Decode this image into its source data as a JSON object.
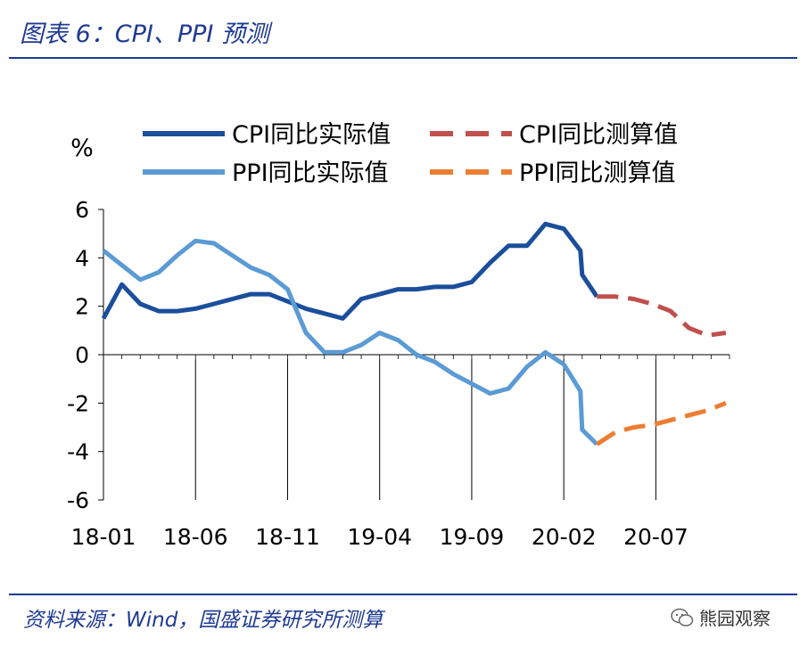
{
  "header": {
    "title": "图表 6：CPI、PPI 预测"
  },
  "footer": {
    "source": "资料来源：Wind，国盛证券研究所测算",
    "brand": "熊园观察",
    "brand_icon": "wechat-icon"
  },
  "chart_data": {
    "type": "line",
    "unit_label": "%",
    "ylim": [
      -6,
      6
    ],
    "yticks": [
      6,
      4,
      2,
      0,
      -2,
      -4,
      -6
    ],
    "x_tick_labels": [
      "18-01",
      "18-06",
      "18-11",
      "19-04",
      "19-09",
      "20-02",
      "20-07"
    ],
    "x_range": [
      0,
      34
    ],
    "x_tick_positions": [
      0,
      5,
      10,
      15,
      20,
      25,
      30
    ],
    "legend_placement": "top",
    "series": [
      {
        "name": "CPI同比实际值",
        "color": "#1b4e9b",
        "style": "solid",
        "x": [
          0,
          1,
          2,
          3,
          4,
          5,
          6,
          7,
          8,
          9,
          10,
          11,
          12,
          13,
          14,
          15,
          16,
          17,
          18,
          19,
          20,
          21,
          22,
          23,
          24,
          25,
          25.9,
          26,
          26.8
        ],
        "values": [
          1.5,
          2.9,
          2.1,
          1.8,
          1.8,
          1.9,
          2.1,
          2.3,
          2.5,
          2.5,
          2.2,
          1.9,
          1.7,
          1.5,
          2.3,
          2.5,
          2.7,
          2.7,
          2.8,
          2.8,
          3.0,
          3.8,
          4.5,
          4.5,
          5.4,
          5.2,
          4.3,
          3.3,
          2.4
        ]
      },
      {
        "name": "PPI同比实际值",
        "color": "#5b9bd5",
        "style": "solid",
        "x": [
          0,
          1,
          2,
          3,
          4,
          5,
          6,
          7,
          8,
          9,
          10,
          11,
          12,
          13,
          14,
          15,
          16,
          17,
          18,
          19,
          20,
          21,
          22,
          23,
          24,
          25,
          25.9,
          26,
          26.8
        ],
        "values": [
          4.3,
          3.7,
          3.1,
          3.4,
          4.1,
          4.7,
          4.6,
          4.1,
          3.6,
          3.3,
          2.7,
          0.9,
          0.1,
          0.1,
          0.4,
          0.9,
          0.6,
          0,
          -0.3,
          -0.8,
          -1.2,
          -1.6,
          -1.4,
          -0.5,
          0.1,
          -0.4,
          -1.5,
          -3.1,
          -3.7
        ]
      },
      {
        "name": "CPI同比测算值",
        "color": "#c0504d",
        "style": "dashed",
        "x": [
          26.8,
          27.8,
          28.8,
          29.8,
          30.8,
          31.8,
          32.8,
          33.8
        ],
        "values": [
          2.4,
          2.4,
          2.3,
          2.1,
          1.8,
          1.1,
          0.8,
          0.9
        ]
      },
      {
        "name": "PPI同比测算值",
        "color": "#ed7d31",
        "style": "dashed",
        "x": [
          26.8,
          27.8,
          28.8,
          29.8,
          30.8,
          31.8,
          32.8,
          33.8
        ],
        "values": [
          -3.7,
          -3.2,
          -3.0,
          -2.9,
          -2.7,
          -2.5,
          -2.3,
          -2.0
        ]
      }
    ]
  }
}
